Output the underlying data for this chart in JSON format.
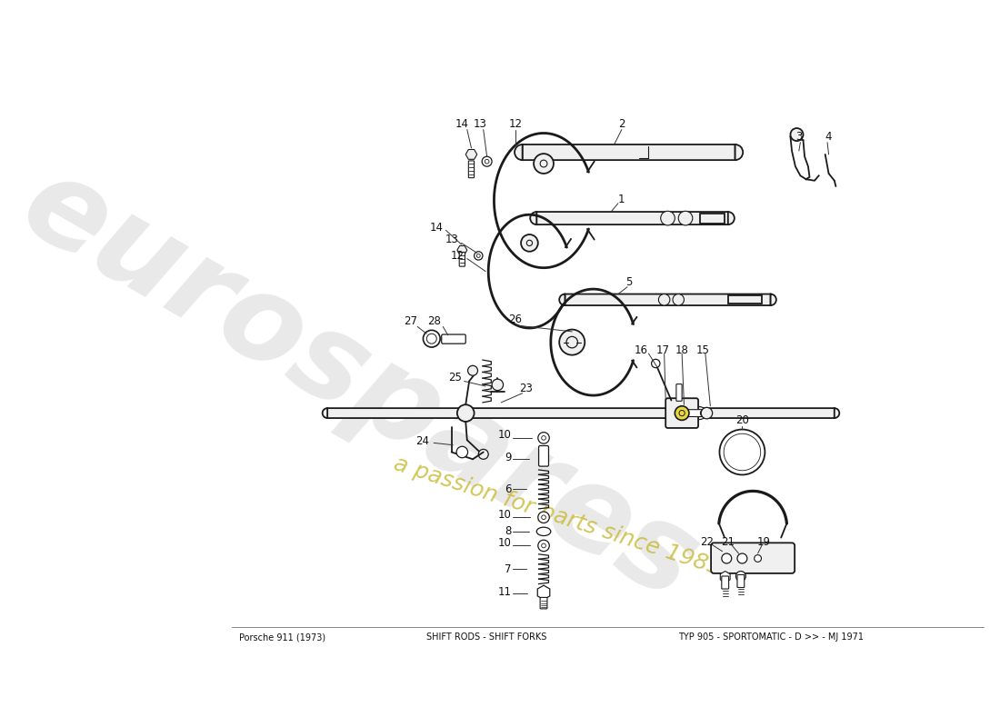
{
  "title": "SHIFT RODS - SHIFT FORKS",
  "subtitle": "TYP 905 - SPORTOMATIC - D >> - MJ 1971",
  "header": "Porsche 911 (1973)",
  "bg_color": "#ffffff",
  "line_color": "#1a1a1a",
  "watermark_text1": "eurospares",
  "watermark_text2": "a passion for parts since 1985",
  "watermark_color1": "#c0c0c0",
  "watermark_color2": "#c8b832"
}
